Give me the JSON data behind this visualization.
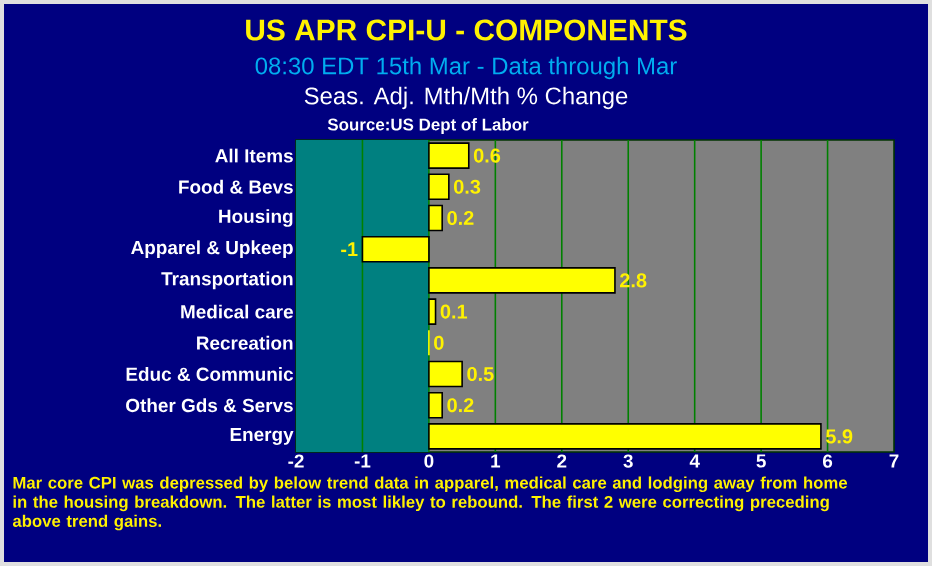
{
  "chart_data": {
    "type": "bar",
    "orientation": "horizontal",
    "title": "US APR CPI-U - COMPONENTS",
    "subtitle": "08:30 EDT 15th Mar - Data through Mar",
    "annotations": [
      "Seas. Adj. Mth/Mth % Change",
      "Source:US Dept of Labor",
      "Mar core CPI was depressed by below trend data in apparel, medical care and lodging away from home in the housing breakdown.   The latter is most likley to rebound.   The first 2 were correcting preceding above trend gains."
    ],
    "categories": [
      "All Items",
      "Food & Bevs",
      "Housing",
      "Apparel & Upkeep",
      "Transportation",
      "Medical care",
      "Recreation",
      "Educ & Communic",
      "Other Gds & Servs",
      "Energy"
    ],
    "values": [
      0.6,
      0.3,
      0.2,
      -1,
      2.8,
      0.1,
      0,
      0.5,
      0.2,
      5.9
    ],
    "color": "#ffff00",
    "data_labels": true,
    "xlim": [
      -2,
      7
    ],
    "xticks": [
      -2,
      -1,
      0,
      1,
      2,
      3,
      4,
      5,
      6,
      7
    ],
    "grid": "x",
    "bands": [
      {
        "axis": "x",
        "from": -2,
        "to": 0,
        "color": "#008080"
      }
    ]
  }
}
